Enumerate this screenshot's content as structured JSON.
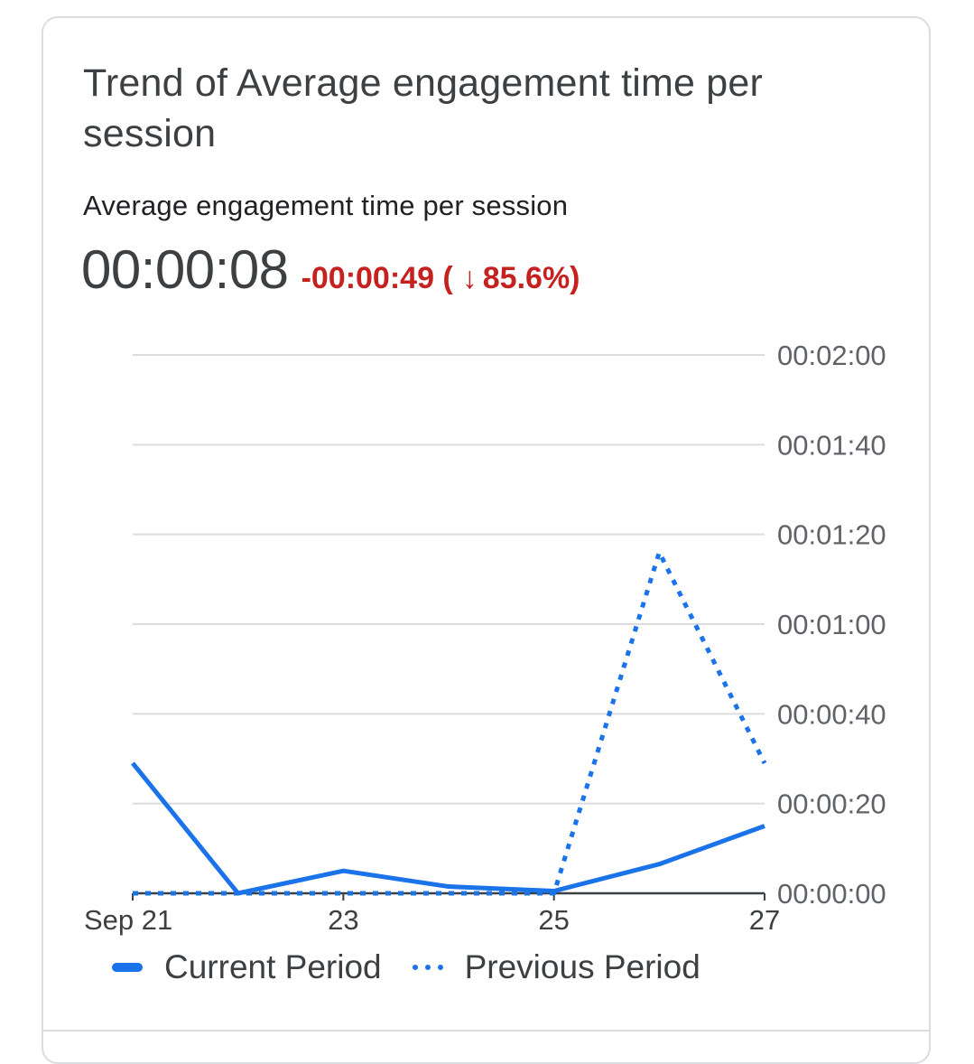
{
  "card": {
    "title": "Trend of Average engagement time per session",
    "metric_label": "Average engagement time per session",
    "metric_value": "00:00:08",
    "change_value": "-00:00:49",
    "change_percent": "85.6%",
    "change_direction": "down",
    "change_color": "#c5221f"
  },
  "chart_data": {
    "type": "line",
    "title": "",
    "xlabel": "",
    "ylabel": "",
    "x": [
      "Sep 21",
      "Sep 22",
      "Sep 23",
      "Sep 24",
      "Sep 25",
      "Sep 26",
      "Sep 27"
    ],
    "x_tick_labels": [
      {
        "index": 0,
        "label": "Sep 21"
      },
      {
        "index": 2,
        "label": "23"
      },
      {
        "index": 4,
        "label": "25"
      },
      {
        "index": 6,
        "label": "27"
      }
    ],
    "y_tick_labels": [
      "00:00:00",
      "00:00:20",
      "00:00:40",
      "00:01:00",
      "00:01:20",
      "00:01:40",
      "00:02:00"
    ],
    "y_tick_values": [
      0,
      20,
      40,
      60,
      80,
      100,
      120
    ],
    "ylim": [
      0,
      120
    ],
    "y_unit": "seconds",
    "y_axis_position": "right",
    "grid": true,
    "series": [
      {
        "name": "Current Period",
        "style": "solid",
        "color": "#1a73e8",
        "values": [
          29,
          0,
          5,
          1.5,
          0.5,
          6.5,
          15
        ]
      },
      {
        "name": "Previous Period",
        "style": "dotted",
        "color": "#1a73e8",
        "values": [
          0,
          0,
          0,
          0,
          0,
          76,
          29
        ]
      }
    ],
    "legend_position": "bottom-left"
  }
}
